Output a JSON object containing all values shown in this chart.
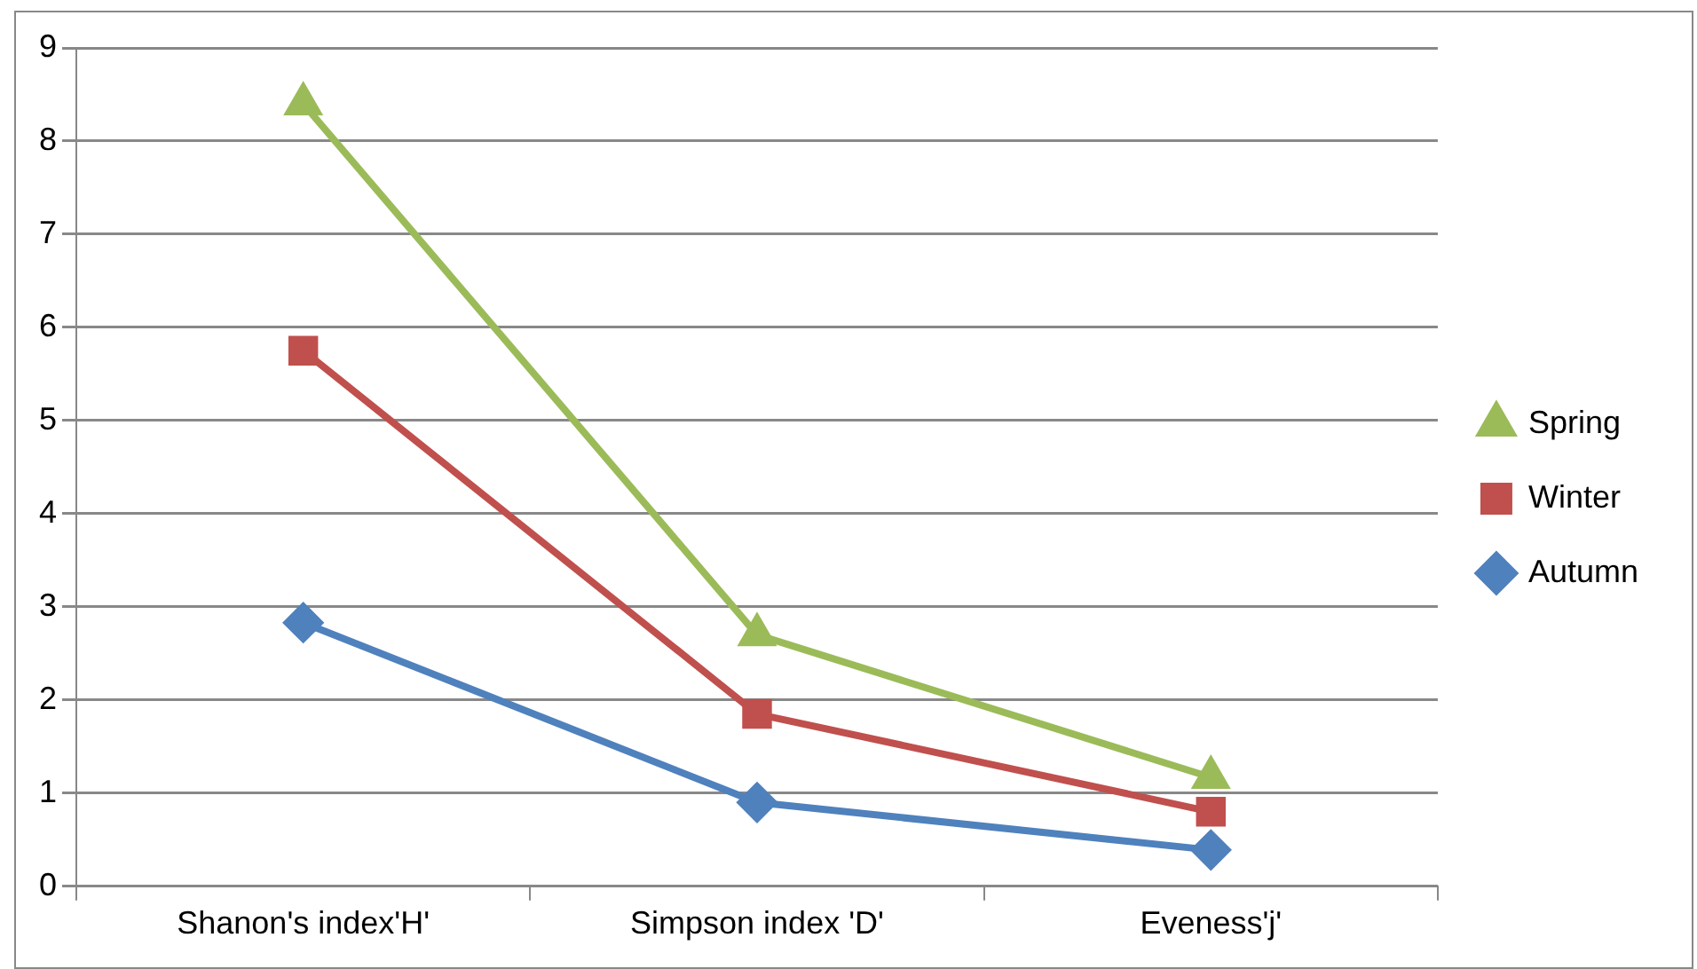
{
  "chart_data": {
    "type": "line",
    "categories": [
      "Shanon's index'H'",
      "Simpson index 'D'",
      "Eveness'j'"
    ],
    "series": [
      {
        "name": "Spring",
        "color": "#9bbb59",
        "marker": "triangle",
        "values": [
          8.4,
          2.7,
          1.17
        ]
      },
      {
        "name": "Winter",
        "color": "#c0504d",
        "marker": "square",
        "values": [
          5.75,
          1.85,
          0.8
        ]
      },
      {
        "name": "Autumn",
        "color": "#4f81bd",
        "marker": "diamond",
        "values": [
          2.83,
          0.9,
          0.39
        ]
      }
    ],
    "ylim": [
      0,
      9
    ],
    "yticks": [
      0,
      1,
      2,
      3,
      4,
      5,
      6,
      7,
      8,
      9
    ],
    "grid": "y",
    "legend": "right",
    "line_style": "solid"
  }
}
